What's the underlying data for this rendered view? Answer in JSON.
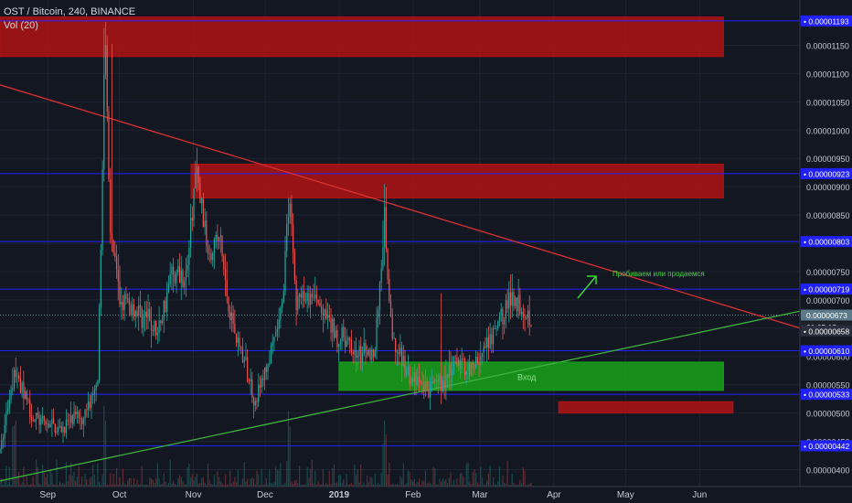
{
  "header": {
    "title": "OST / Bitcoin, 240, BINANCE",
    "volume_label": "Vol (20)"
  },
  "colors": {
    "background": "#131722",
    "up": "#26a69a",
    "down": "#ef5350",
    "level_line": "#2121ff",
    "zone_red": "#b01313",
    "zone_green": "#17a317",
    "trend_red": "#d83232",
    "trend_green": "#3fb23f",
    "current_price": "#5c7a8a"
  },
  "chart_data": {
    "type": "candlestick",
    "symbol": "OST / Bitcoin",
    "interval": "240",
    "exchange": "BINANCE",
    "ylim": [
      3.7e-06,
      1.23e-05
    ],
    "y_ticks": [
      "0.00000400",
      "0.00000450",
      "0.00000500",
      "0.00000550",
      "0.00000600",
      "0.00000650",
      "0.00000700",
      "0.00000750",
      "0.00000800",
      "0.00000850",
      "0.00000900",
      "0.00000950",
      "0.00001000",
      "0.00001050",
      "0.00001100",
      "0.00001150"
    ],
    "x_ticks": [
      "Sep",
      "Oct",
      "Nov",
      "Dec",
      "2019",
      "Feb",
      "Mar",
      "Apr",
      "May",
      "Jun"
    ],
    "x_tick_dates": [
      "2018-09-01",
      "2018-10-01",
      "2018-11-01",
      "2018-12-01",
      "2019-01-01",
      "2019-02-01",
      "2019-03-01",
      "2019-04-01",
      "2019-05-01",
      "2019-06-01"
    ],
    "x_range": [
      "2018-08-12",
      "2019-07-13"
    ],
    "price_path": [
      {
        "date": "2018-08-12",
        "price": 4.3e-06
      },
      {
        "date": "2018-08-18",
        "price": 5.8e-06
      },
      {
        "date": "2018-08-26",
        "price": 4.9e-06
      },
      {
        "date": "2018-09-06",
        "price": 4.7e-06
      },
      {
        "date": "2018-09-16",
        "price": 5e-06
      },
      {
        "date": "2018-09-22",
        "price": 5.4e-06
      },
      {
        "date": "2018-09-25",
        "price": 1.18e-05
      },
      {
        "date": "2018-09-27",
        "price": 8.4e-06
      },
      {
        "date": "2018-10-01",
        "price": 7e-06
      },
      {
        "date": "2018-10-12",
        "price": 6.7e-06
      },
      {
        "date": "2018-10-17",
        "price": 6.4e-06
      },
      {
        "date": "2018-10-23",
        "price": 7.5e-06
      },
      {
        "date": "2018-10-29",
        "price": 7.4e-06
      },
      {
        "date": "2018-11-02",
        "price": 9.3e-06
      },
      {
        "date": "2018-11-07",
        "price": 7.9e-06
      },
      {
        "date": "2018-11-12",
        "price": 8.1e-06
      },
      {
        "date": "2018-11-16",
        "price": 6.8e-06
      },
      {
        "date": "2018-11-21",
        "price": 6.1e-06
      },
      {
        "date": "2018-11-27",
        "price": 5.2e-06
      },
      {
        "date": "2018-12-04",
        "price": 6.1e-06
      },
      {
        "date": "2018-12-08",
        "price": 6.8e-06
      },
      {
        "date": "2018-12-11",
        "price": 8.8e-06
      },
      {
        "date": "2018-12-14",
        "price": 7e-06
      },
      {
        "date": "2018-12-22",
        "price": 7e-06
      },
      {
        "date": "2018-12-30",
        "price": 6.4e-06
      },
      {
        "date": "2019-01-10",
        "price": 6e-06
      },
      {
        "date": "2019-01-16",
        "price": 6.1e-06
      },
      {
        "date": "2019-01-20",
        "price": 8.4e-06
      },
      {
        "date": "2019-01-23",
        "price": 6.3e-06
      },
      {
        "date": "2019-01-31",
        "price": 5.6e-06
      },
      {
        "date": "2019-02-08",
        "price": 5.4e-06
      },
      {
        "date": "2019-02-15",
        "price": 5.6e-06
      },
      {
        "date": "2019-02-19",
        "price": 5.9e-06
      },
      {
        "date": "2019-02-26",
        "price": 5.8e-06
      },
      {
        "date": "2019-03-05",
        "price": 6.2e-06
      },
      {
        "date": "2019-03-11",
        "price": 6.8e-06
      },
      {
        "date": "2019-03-15",
        "price": 7.1e-06
      },
      {
        "date": "2019-03-18",
        "price": 6.9e-06
      },
      {
        "date": "2019-03-23",
        "price": 6.7e-06
      }
    ],
    "level_lines": [
      "0.00001193",
      "0.00000923",
      "0.00000803",
      "0.00000719",
      "0.00000610",
      "0.00000533",
      "0.00000442"
    ],
    "current_price": {
      "value": "0.00000673",
      "countdown": "01:05:12",
      "alt_value": "0.00000658"
    },
    "zones": [
      {
        "color": "red",
        "start": "2018-08-12",
        "end": "2019-06-11",
        "low": 1.13e-05,
        "high": 1.2e-05
      },
      {
        "color": "red",
        "start": "2018-10-31",
        "end": "2019-06-11",
        "low": 8.8e-06,
        "high": 9.4e-06
      },
      {
        "color": "green",
        "start": "2019-01-01",
        "end": "2019-06-11",
        "low": 5.4e-06,
        "high": 5.9e-06,
        "label": "Вход"
      },
      {
        "color": "red",
        "start": "2019-04-03",
        "end": "2019-06-15",
        "low": 5e-06,
        "high": 5.2e-06
      }
    ],
    "trendlines": [
      {
        "color": "red",
        "from": {
          "date": "2018-08-12",
          "price": 1.08e-05
        },
        "to": {
          "date": "2019-07-13",
          "price": 6.5e-06
        }
      },
      {
        "color": "green",
        "from": {
          "date": "2018-08-12",
          "price": 3.8e-06
        },
        "to": {
          "date": "2019-07-13",
          "price": 6.8e-06
        }
      }
    ],
    "annotation": {
      "text": "Пробиваем или продаемся"
    }
  }
}
